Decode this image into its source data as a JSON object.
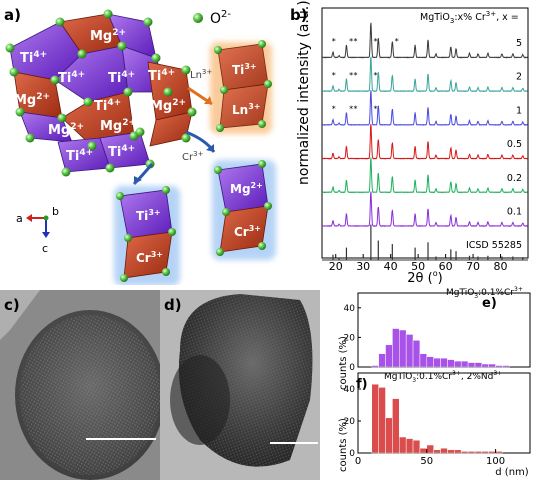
{
  "panels": {
    "a": "a)",
    "b": "b)",
    "c": "c)",
    "d": "d)",
    "e": "e)",
    "f": "f)"
  },
  "structure": {
    "legend_ion": "O",
    "legend_charge": "2-",
    "ions": [
      {
        "el": "Mg",
        "ch": "2+"
      },
      {
        "el": "Ti",
        "ch": "4+"
      },
      {
        "el": "Ti",
        "ch": "4+"
      },
      {
        "el": "Mg",
        "ch": "2+"
      },
      {
        "el": "Ti",
        "ch": "4+"
      },
      {
        "el": "Ti",
        "ch": "4+"
      },
      {
        "el": "Ti",
        "ch": "4+"
      },
      {
        "el": "Mg",
        "ch": "2+"
      },
      {
        "el": "Mg",
        "ch": "2+"
      },
      {
        "el": "Mg",
        "ch": "2+"
      },
      {
        "el": "Ti",
        "ch": "4+"
      },
      {
        "el": "Ti",
        "ch": "4+"
      }
    ],
    "ln_dimer": [
      {
        "el": "Ti",
        "ch": "3+"
      },
      {
        "el": "Ln",
        "ch": "3+"
      }
    ],
    "ln_arrow": {
      "el": "Ln",
      "ch": "3+"
    },
    "cr_arrow": {
      "el": "Cr",
      "ch": "3+"
    },
    "ti_cr_dimer": [
      {
        "el": "Ti",
        "ch": "3+"
      },
      {
        "el": "Cr",
        "ch": "3+"
      }
    ],
    "mg_cr_dimer": [
      {
        "el": "Mg",
        "ch": "2+"
      },
      {
        "el": "Cr",
        "ch": "3+"
      }
    ],
    "axes": [
      "a",
      "b",
      "c"
    ]
  },
  "chart_data": [
    {
      "type": "line",
      "title": "MgTiO3:x% Cr3+, x =",
      "title_parts": {
        "main": "MgTiO",
        "sub": "3",
        "mid": ":x% Cr",
        "sup": "3+",
        "tail": ", x ="
      },
      "xlabel": "2θ (°)",
      "xlabel_parts": {
        "main": "2θ (",
        "deg": "o",
        "tail": ")"
      },
      "ylabel": "normalized intensity (a.u.)",
      "xlim": [
        15,
        90
      ],
      "xticks": [
        20,
        30,
        40,
        50,
        60,
        70,
        80
      ],
      "series": [
        {
          "name": "5",
          "color": "#3a3a3a"
        },
        {
          "name": "2",
          "color": "#3aa59a"
        },
        {
          "name": "1",
          "color": "#4a4ae0"
        },
        {
          "name": "0.5",
          "color": "#d81818"
        },
        {
          "name": "0.2",
          "color": "#20b060"
        },
        {
          "name": "0.1",
          "color": "#8830d8"
        },
        {
          "name": "ICSD 55285",
          "color": "#333333"
        }
      ],
      "peaks_2theta": [
        19.0,
        21.2,
        23.9,
        32.8,
        35.5,
        40.6,
        48.9,
        53.6,
        56.5,
        61.9,
        63.8,
        68.7,
        71.8,
        75.4,
        80.5,
        84.5,
        88.1
      ],
      "peak_rel_intensity": [
        0.15,
        0.05,
        0.35,
        1.0,
        0.55,
        0.45,
        0.35,
        0.5,
        0.1,
        0.3,
        0.25,
        0.12,
        0.1,
        0.12,
        0.1,
        0.1,
        0.08
      ]
    },
    {
      "type": "bar",
      "label": "MgTiO3:0.1%Cr3+",
      "label_parts": {
        "main": "MgTiO",
        "sub": "3",
        "mid": ":0.1%Cr",
        "sup": "3+",
        "tail": ""
      },
      "ylabel": "counts (%)",
      "ylim": [
        0,
        50
      ],
      "yticks": [
        0,
        20,
        40
      ],
      "bin_starts": [
        10,
        15,
        20,
        25,
        30,
        35,
        40,
        45,
        50,
        55,
        60,
        65,
        70,
        75,
        80,
        85,
        90,
        95,
        100,
        105
      ],
      "values": [
        1,
        9,
        15,
        26,
        25,
        22,
        18,
        9,
        7,
        6,
        6,
        5,
        4,
        4,
        3,
        3,
        2,
        2,
        1,
        1
      ],
      "color": "#a040e8"
    },
    {
      "type": "bar",
      "label": "MgTiO3:0.1%Cr3+, 2%Nd3+",
      "label_parts": {
        "main": "MgTiO",
        "sub": "3",
        "mid": ":0.1%Cr",
        "sup": "3+",
        "tail": ", 2%Nd",
        "sup2": "3+"
      },
      "xlabel": "d (nm)",
      "ylabel": "counts (%)",
      "xlim": [
        0,
        125
      ],
      "xticks": [
        0,
        50,
        100
      ],
      "ylim": [
        0,
        50
      ],
      "yticks": [
        0,
        20,
        40
      ],
      "bin_starts": [
        10,
        15,
        20,
        25,
        30,
        35,
        40,
        45,
        50,
        55,
        60,
        65,
        70,
        75,
        80,
        85,
        90,
        95,
        100
      ],
      "values": [
        43,
        41,
        22,
        34,
        10,
        9,
        8,
        3,
        5,
        2,
        3,
        2,
        2,
        1,
        1,
        1,
        1,
        1,
        1
      ],
      "color": "#d83a3a"
    }
  ]
}
